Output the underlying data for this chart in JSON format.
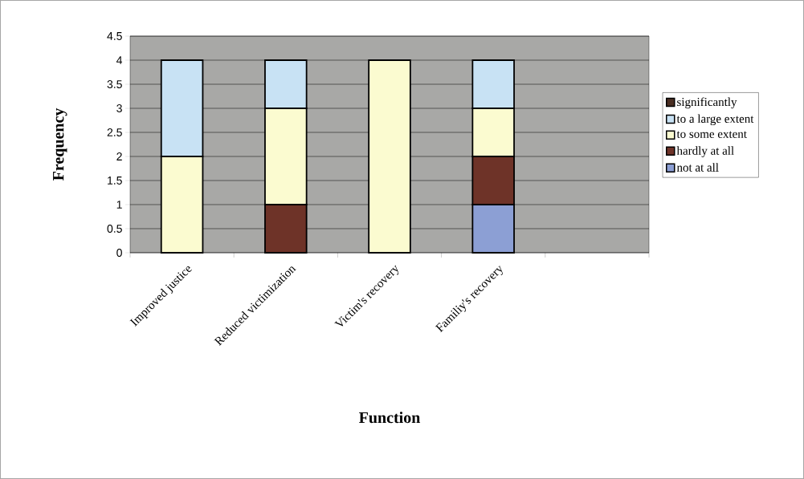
{
  "chart_data": {
    "type": "bar",
    "stacked": true,
    "xlabel": "Function",
    "ylabel": "Frequency",
    "categories": [
      "Improved justice",
      "Reduced victimization",
      "Victim's recovery",
      "Familiy's recovery",
      null
    ],
    "series": [
      {
        "name": "not at all",
        "color": "#8c9fd4",
        "values": [
          0,
          0,
          0,
          1,
          null
        ]
      },
      {
        "name": "hardly at all",
        "color": "#6e3328",
        "values": [
          0,
          1,
          0,
          1,
          null
        ]
      },
      {
        "name": "to some extent",
        "color": "#fbfbd0",
        "values": [
          2,
          2,
          4,
          1,
          null
        ]
      },
      {
        "name": "to a large extent",
        "color": "#c8e2f4",
        "values": [
          2,
          1,
          0,
          1,
          null
        ]
      },
      {
        "name": "significantly",
        "color": "#4a2e22",
        "values": [
          0,
          0,
          0,
          0,
          null
        ]
      }
    ],
    "ylim": [
      0,
      4.5
    ],
    "yticks": [
      0,
      0.5,
      1,
      1.5,
      2,
      2.5,
      3,
      3.5,
      4,
      4.5
    ],
    "grid": "y",
    "legend": "right"
  }
}
